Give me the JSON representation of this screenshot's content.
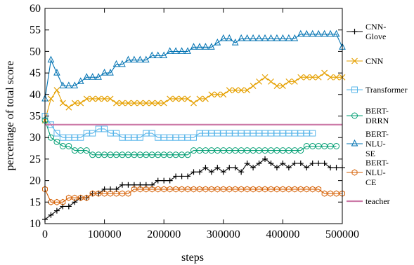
{
  "chart_data": {
    "type": "line",
    "xlabel": "steps",
    "ylabel": "percentage of total score",
    "xlim": [
      0,
      500000
    ],
    "ylim": [
      10,
      60
    ],
    "xticks": [
      "0",
      "100000",
      "200000",
      "300000",
      "400000",
      "500000"
    ],
    "yticks": [
      "10",
      "15",
      "20",
      "25",
      "30",
      "35",
      "40",
      "45",
      "50",
      "55",
      "60"
    ],
    "grid": false,
    "legend_position": "right",
    "series": [
      {
        "name": "CNN-Glove",
        "color": "#000000",
        "marker": "plus",
        "x": [
          0,
          10000,
          20000,
          30000,
          40000,
          50000,
          60000,
          70000,
          80000,
          90000,
          100000,
          110000,
          120000,
          130000,
          140000,
          150000,
          160000,
          170000,
          180000,
          190000,
          200000,
          210000,
          220000,
          230000,
          240000,
          250000,
          260000,
          270000,
          280000,
          290000,
          300000,
          310000,
          320000,
          330000,
          340000,
          350000,
          360000,
          370000,
          380000,
          390000,
          400000,
          410000,
          420000,
          430000,
          440000,
          450000,
          460000,
          470000,
          480000,
          490000,
          500000
        ],
        "y": [
          11,
          12,
          13,
          14,
          14,
          15,
          16,
          16,
          17,
          17,
          18,
          18,
          18,
          19,
          19,
          19,
          19,
          19,
          19,
          20,
          20,
          20,
          21,
          21,
          21,
          22,
          22,
          23,
          22,
          23,
          22,
          23,
          23,
          22,
          24,
          23,
          24,
          25,
          24,
          23,
          24,
          23,
          24,
          24,
          23,
          24,
          24,
          24,
          23,
          23,
          23
        ]
      },
      {
        "name": "CNN",
        "color": "#e5a000",
        "marker": "x",
        "x": [
          0,
          10000,
          20000,
          30000,
          40000,
          50000,
          60000,
          70000,
          80000,
          90000,
          100000,
          110000,
          120000,
          130000,
          140000,
          150000,
          160000,
          170000,
          180000,
          190000,
          200000,
          210000,
          220000,
          230000,
          240000,
          250000,
          260000,
          270000,
          280000,
          290000,
          300000,
          310000,
          320000,
          330000,
          340000,
          350000,
          360000,
          370000,
          380000,
          390000,
          400000,
          410000,
          420000,
          430000,
          440000,
          450000,
          460000,
          470000,
          480000,
          490000,
          500000
        ],
        "y": [
          34,
          39,
          41,
          38,
          37,
          38,
          38,
          39,
          39,
          39,
          39,
          39,
          38,
          38,
          38,
          38,
          38,
          38,
          38,
          38,
          38,
          39,
          39,
          39,
          39,
          38,
          39,
          39,
          40,
          40,
          40,
          41,
          41,
          41,
          41,
          42,
          43,
          44,
          43,
          42,
          42,
          43,
          43,
          44,
          44,
          44,
          44,
          45,
          44,
          44,
          44
        ]
      },
      {
        "name": "Transformer",
        "color": "#56b4e9",
        "marker": "square",
        "x": [
          0,
          10000,
          20000,
          30000,
          40000,
          50000,
          60000,
          70000,
          80000,
          90000,
          100000,
          110000,
          120000,
          130000,
          140000,
          150000,
          160000,
          170000,
          180000,
          190000,
          200000,
          210000,
          220000,
          230000,
          240000,
          250000,
          260000,
          270000,
          280000,
          290000,
          300000,
          310000,
          320000,
          330000,
          340000,
          350000,
          360000,
          370000,
          380000,
          390000,
          400000,
          410000,
          420000,
          430000,
          440000,
          450000
        ],
        "y": [
          35,
          33,
          31,
          30,
          30,
          30,
          30,
          31,
          31,
          32,
          32,
          31,
          31,
          30,
          30,
          30,
          30,
          31,
          31,
          30,
          30,
          30,
          30,
          30,
          30,
          30,
          31,
          31,
          31,
          31,
          31,
          31,
          31,
          31,
          31,
          31,
          31,
          31,
          31,
          31,
          31,
          31,
          31,
          31,
          31,
          31
        ]
      },
      {
        "name": "BERT-DRRN",
        "color": "#009e73",
        "marker": "circle",
        "x": [
          0,
          10000,
          20000,
          30000,
          40000,
          50000,
          60000,
          70000,
          80000,
          90000,
          100000,
          110000,
          120000,
          130000,
          140000,
          150000,
          160000,
          170000,
          180000,
          190000,
          200000,
          210000,
          220000,
          230000,
          240000,
          250000,
          260000,
          270000,
          280000,
          290000,
          300000,
          310000,
          320000,
          330000,
          340000,
          350000,
          360000,
          370000,
          380000,
          390000,
          400000,
          410000,
          420000,
          430000,
          440000,
          450000,
          460000,
          470000,
          480000,
          490000
        ],
        "y": [
          34,
          30,
          29,
          28,
          28,
          27,
          27,
          27,
          26,
          26,
          26,
          26,
          26,
          26,
          26,
          26,
          26,
          26,
          26,
          26,
          26,
          26,
          26,
          26,
          26,
          27,
          27,
          27,
          27,
          27,
          27,
          27,
          27,
          27,
          27,
          27,
          27,
          27,
          27,
          27,
          27,
          27,
          27,
          27,
          28,
          28,
          28,
          28,
          28,
          28
        ]
      },
      {
        "name": "BERT-NLU-SE",
        "color": "#0072b2",
        "marker": "triangle",
        "x": [
          0,
          10000,
          20000,
          30000,
          40000,
          50000,
          60000,
          70000,
          80000,
          90000,
          100000,
          110000,
          120000,
          130000,
          140000,
          150000,
          160000,
          170000,
          180000,
          190000,
          200000,
          210000,
          220000,
          230000,
          240000,
          250000,
          260000,
          270000,
          280000,
          290000,
          300000,
          310000,
          320000,
          330000,
          340000,
          350000,
          360000,
          370000,
          380000,
          390000,
          400000,
          410000,
          420000,
          430000,
          440000,
          450000,
          460000,
          470000,
          480000,
          490000,
          500000
        ],
        "y": [
          39,
          48,
          45,
          42,
          42,
          42,
          43,
          44,
          44,
          44,
          45,
          45,
          47,
          47,
          48,
          48,
          48,
          48,
          49,
          49,
          49,
          50,
          50,
          50,
          50,
          51,
          51,
          51,
          51,
          52,
          53,
          53,
          52,
          53,
          53,
          53,
          53,
          53,
          53,
          53,
          53,
          53,
          53,
          54,
          54,
          54,
          54,
          54,
          54,
          54,
          51
        ]
      },
      {
        "name": "BERT-NLU-CE",
        "color": "#d55e00",
        "marker": "hexagon",
        "x": [
          0,
          10000,
          20000,
          30000,
          40000,
          50000,
          60000,
          70000,
          80000,
          90000,
          100000,
          110000,
          120000,
          130000,
          140000,
          150000,
          160000,
          170000,
          180000,
          190000,
          200000,
          210000,
          220000,
          230000,
          240000,
          250000,
          260000,
          270000,
          280000,
          290000,
          300000,
          310000,
          320000,
          330000,
          340000,
          350000,
          360000,
          370000,
          380000,
          390000,
          400000,
          410000,
          420000,
          430000,
          440000,
          450000,
          460000,
          470000,
          480000,
          490000,
          500000
        ],
        "y": [
          18,
          15,
          15,
          15,
          16,
          16,
          16,
          16,
          17,
          17,
          17,
          17,
          17,
          17,
          17,
          18,
          18,
          18,
          18,
          18,
          18,
          18,
          18,
          18,
          18,
          18,
          18,
          18,
          18,
          18,
          18,
          18,
          18,
          18,
          18,
          18,
          18,
          18,
          18,
          18,
          18,
          18,
          18,
          18,
          18,
          18,
          18,
          17,
          17,
          17,
          17
        ]
      },
      {
        "name": "teacher",
        "color": "#cc79a7",
        "marker": "none",
        "x": [
          0,
          500000
        ],
        "y": [
          33,
          33
        ]
      }
    ]
  }
}
